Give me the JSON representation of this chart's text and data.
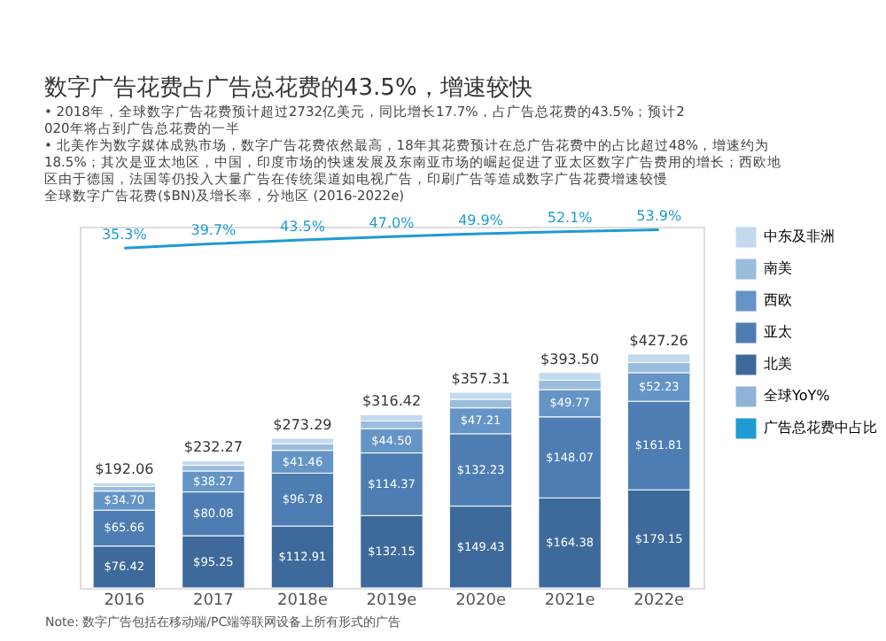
{
  "chart_data": {
    "type": "bar",
    "title": "数字广告花费占广告总花费的43.5%，增速较快",
    "subtitle": "全球数字广告花费($BN)及增长率，分地区 (2016-2022e)",
    "annotations": [
      "• 2018年，全球数字广告花费预计超过2732亿美元，同比增长17.7%，占广告总花费的43.5%；预计2020年将占到广告总花费的一半",
      "• 北美作为数字媒体成熟市场，数字广告花费依然最高，18年其花费预计在总广告花费中的占比超过48%，增速约为18.5%；其次是亚太地区，中国，印度市场的快速发展及东南亚市场的崛起促进了亚太区数字广告费用的增长；西欧地区由于德国，法国等仍投入大量广告在传统渠道如电视广告，印刷广告等造成数字广告花费增速较慢",
      "Note: 数字广告包括在移动端/PC端等联网设备上所有形式的广告"
    ],
    "categories": [
      "2016",
      "2017",
      "2018e",
      "2019e",
      "2020e",
      "2021e",
      "2022e"
    ],
    "stacked": true,
    "ylim": [
      0,
      660
    ],
    "y2lim": [
      -308,
      57
    ],
    "tick_labels": "x",
    "legend": "right",
    "series": [
      {
        "name": "北美",
        "color": "#3d6a9a",
        "values": [
          76.42,
          95.25,
          112.91,
          132.15,
          149.43,
          164.38,
          179.15
        ],
        "value_labels": [
          "$76.42",
          "$95.25",
          "$112.91",
          "$132.15",
          "$149.43",
          "$164.38",
          "$179.15"
        ]
      },
      {
        "name": "亚太",
        "color": "#4d7db3",
        "values": [
          65.66,
          80.08,
          96.78,
          114.37,
          132.23,
          148.07,
          161.81
        ],
        "value_labels": [
          "$65.66",
          "$80.08",
          "$96.78",
          "$114.37",
          "$132.23",
          "$148.07",
          "$161.81"
        ]
      },
      {
        "name": "西欧",
        "color": "#6594c6",
        "values": [
          34.7,
          38.27,
          41.46,
          44.5,
          47.21,
          49.77,
          52.23
        ],
        "value_labels": [
          "$34.70",
          "$38.27",
          "$41.46",
          "$44.50",
          "$47.21",
          "$49.77",
          "$52.23"
        ]
      },
      {
        "name": "南美",
        "color": "#9abcdd",
        "values": [
          8.4,
          10.3,
          12.2,
          14.0,
          15.6,
          17.2,
          18.7
        ]
      },
      {
        "name": "中东及非洲",
        "color": "#c3d9ee",
        "values": [
          6.88,
          8.37,
          9.94,
          11.4,
          12.84,
          14.08,
          15.37
        ]
      },
      {
        "name": "全球YoY%",
        "type": "line",
        "axis": "y2",
        "color": "#8fb3d6",
        "values": [
          null,
          null,
          null,
          null,
          null,
          null,
          null
        ]
      },
      {
        "name": "广告总花费中占比",
        "type": "line",
        "axis": "y2",
        "color": "#1f9bd1",
        "values": [
          35.3,
          39.7,
          43.5,
          47.0,
          49.9,
          52.1,
          53.9
        ],
        "value_labels": [
          "35.3%",
          "39.7%",
          "43.5%",
          "47.0%",
          "49.9%",
          "52.1%",
          "53.9%"
        ]
      }
    ],
    "totals": [
      "$192.06",
      "$232.27",
      "$273.29",
      "$316.42",
      "$357.31",
      "$393.50",
      "$427.26"
    ]
  }
}
